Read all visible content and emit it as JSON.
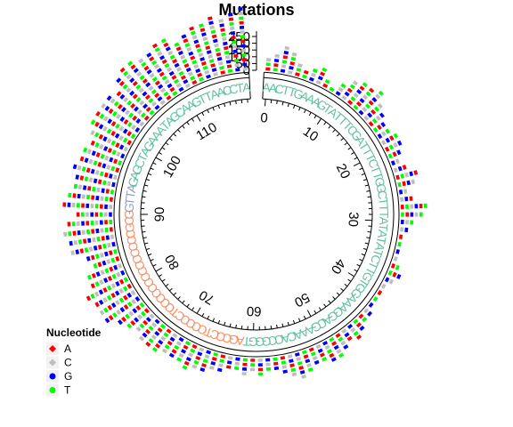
{
  "chart_data": {
    "type": "circular",
    "title": "Mutations",
    "positions": [
      0,
      10,
      20,
      30,
      40,
      50,
      60,
      70,
      80,
      90,
      100,
      110
    ],
    "position_labels": [
      "0",
      "10",
      "20",
      "30",
      "40",
      "50",
      "60",
      "70",
      "80",
      "90",
      "100",
      "110"
    ],
    "position_range": [
      0,
      120
    ],
    "y_ticks": [
      "0",
      "50",
      "100",
      "150",
      "200",
      "250"
    ],
    "y_range": [
      0,
      250
    ],
    "sequence": "AACTTGAAAGTATTTCGATTTCTTGGCTTTATATATCTTGTGGAAAGGACGAAACACCGGGTAGCCCTCCCCCTCCCCCCCCCCCCCCGCGGTTAGAGCTAGAAATAGCAAGTTAACCTAAG",
    "sequence_segments": [
      {
        "from": 0,
        "to": 61,
        "color": "#66c2a5"
      },
      {
        "from": 62,
        "to": 90,
        "color": "#fc8d62"
      },
      {
        "from": 91,
        "to": 94,
        "color": "#8da0cb"
      },
      {
        "from": 95,
        "to": 119,
        "color": "#66c2a5"
      }
    ],
    "series": [
      {
        "name": "A",
        "color": "#ff0000",
        "shape": "diamond"
      },
      {
        "name": "C",
        "color": "#bebebe",
        "shape": "diamond"
      },
      {
        "name": "G",
        "color": "#0000ff",
        "shape": "circle"
      },
      {
        "name": "T",
        "color": "#00ff00",
        "shape": "circle"
      }
    ],
    "bar_heights": [
      3,
      4,
      6,
      5,
      3,
      2,
      3,
      4,
      2,
      1,
      3,
      5,
      6,
      6,
      7,
      5,
      4,
      3,
      3,
      4,
      4,
      3,
      2,
      3,
      5,
      4,
      2,
      3,
      6,
      5,
      3,
      2,
      1,
      1,
      1,
      1,
      2,
      3,
      2,
      1,
      1,
      1,
      1,
      2,
      2,
      3,
      4,
      3,
      4,
      5,
      5,
      4,
      4,
      5,
      6,
      5,
      4,
      3,
      3,
      4,
      3,
      4,
      3,
      3,
      4,
      4,
      5,
      5,
      6,
      5,
      5,
      5,
      6,
      6,
      6,
      5,
      6,
      7,
      9,
      9,
      9,
      10,
      8,
      8,
      6,
      7,
      10,
      10,
      11,
      10,
      8,
      11,
      10,
      9,
      9,
      10,
      9,
      9,
      8,
      9,
      10,
      10,
      10,
      10,
      9,
      11,
      12,
      12,
      11,
      11,
      12,
      12,
      10,
      11,
      12,
      12,
      13,
      12,
      13,
      14
    ],
    "legend": {
      "title": "Nucleotide",
      "position": "bottom-left",
      "items": [
        "A",
        "C",
        "G",
        "T"
      ]
    }
  }
}
